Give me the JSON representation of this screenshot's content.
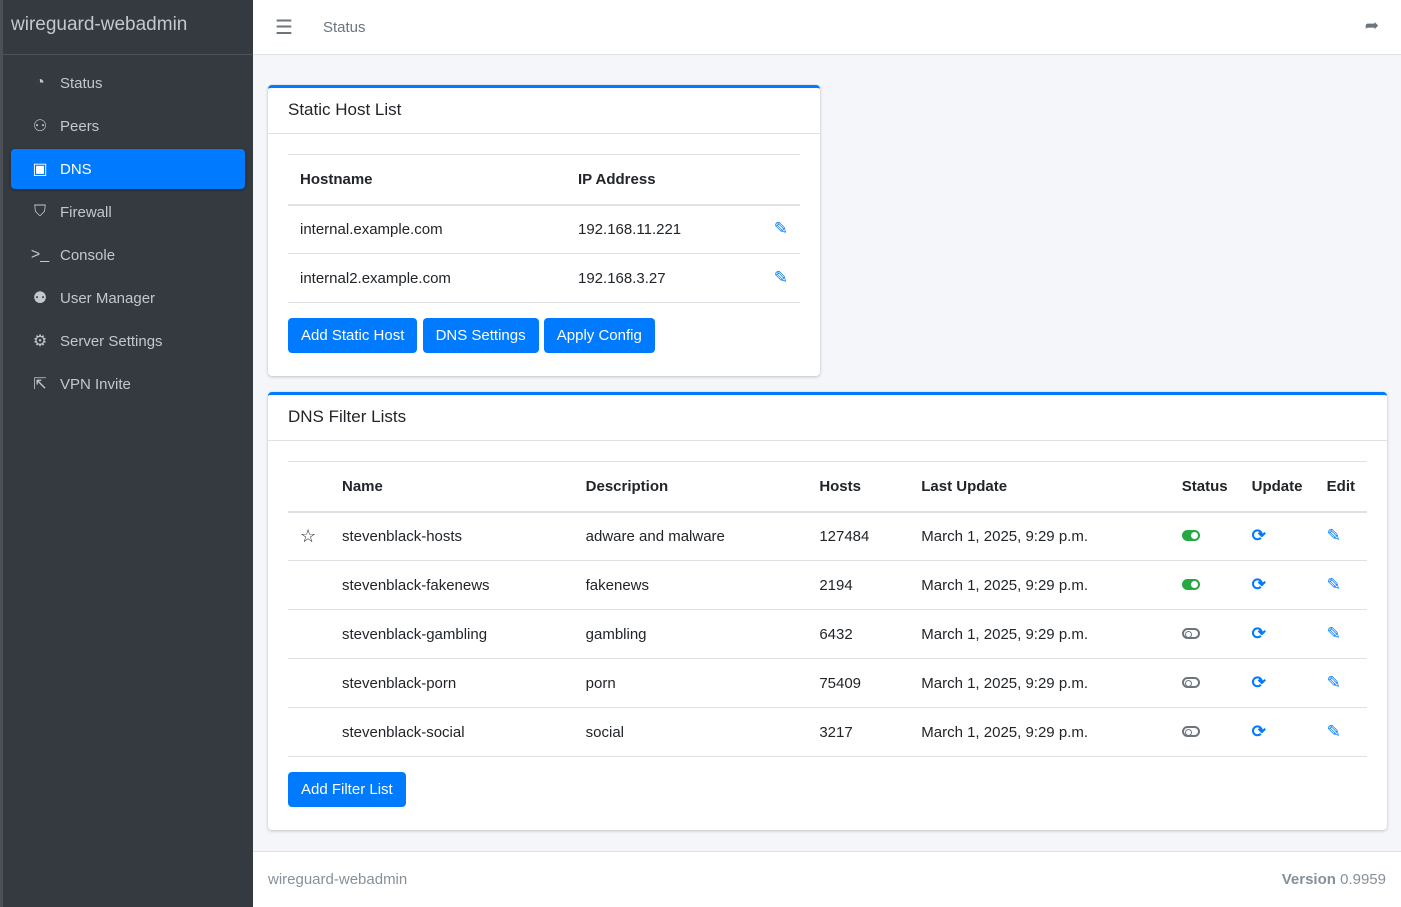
{
  "app": {
    "brand": "wireguard-webadmin"
  },
  "sidebar": {
    "items": [
      {
        "label": "Status",
        "icon": "gauge-icon",
        "glyph": "◔"
      },
      {
        "label": "Peers",
        "icon": "users-cog-icon",
        "glyph": "⚇"
      },
      {
        "label": "DNS",
        "icon": "address-book-icon",
        "glyph": "▣",
        "active": true
      },
      {
        "label": "Firewall",
        "icon": "shield-icon",
        "glyph": "⛉"
      },
      {
        "label": "Console",
        "icon": "terminal-icon",
        "glyph": ">_"
      },
      {
        "label": "User Manager",
        "icon": "users-icon",
        "glyph": "⚉"
      },
      {
        "label": "Server Settings",
        "icon": "cogs-icon",
        "glyph": "⚙"
      },
      {
        "label": "VPN Invite",
        "icon": "share-square-icon",
        "glyph": "⇱"
      }
    ]
  },
  "header": {
    "title": "Status"
  },
  "static_hosts": {
    "title": "Static Host List",
    "columns": [
      "Hostname",
      "IP Address"
    ],
    "rows": [
      {
        "hostname": "internal.example.com",
        "ip": "192.168.11.221"
      },
      {
        "hostname": "internal2.example.com",
        "ip": "192.168.3.27"
      }
    ],
    "buttons": {
      "add": "Add Static Host",
      "dns_settings": "DNS Settings",
      "apply": "Apply Config"
    }
  },
  "filter_lists": {
    "title": "DNS Filter Lists",
    "columns": [
      "",
      "Name",
      "Description",
      "Hosts",
      "Last Update",
      "Status",
      "Update",
      "Edit"
    ],
    "rows": [
      {
        "starred": true,
        "name": "stevenblack-hosts",
        "description": "adware and malware",
        "hosts": "127484",
        "last_update": "March 1, 2025, 9:29 p.m.",
        "enabled": true
      },
      {
        "starred": false,
        "name": "stevenblack-fakenews",
        "description": "fakenews",
        "hosts": "2194",
        "last_update": "March 1, 2025, 9:29 p.m.",
        "enabled": true
      },
      {
        "starred": false,
        "name": "stevenblack-gambling",
        "description": "gambling",
        "hosts": "6432",
        "last_update": "March 1, 2025, 9:29 p.m.",
        "enabled": false
      },
      {
        "starred": false,
        "name": "stevenblack-porn",
        "description": "porn",
        "hosts": "75409",
        "last_update": "March 1, 2025, 9:29 p.m.",
        "enabled": false
      },
      {
        "starred": false,
        "name": "stevenblack-social",
        "description": "social",
        "hosts": "3217",
        "last_update": "March 1, 2025, 9:29 p.m.",
        "enabled": false
      }
    ],
    "add_button": "Add Filter List"
  },
  "footer": {
    "left": "wireguard-webadmin",
    "version_label": "Version",
    "version": "0.9959"
  },
  "colors": {
    "accent": "#007bff",
    "sidebar": "#343a40",
    "enabled": "#28a745"
  }
}
